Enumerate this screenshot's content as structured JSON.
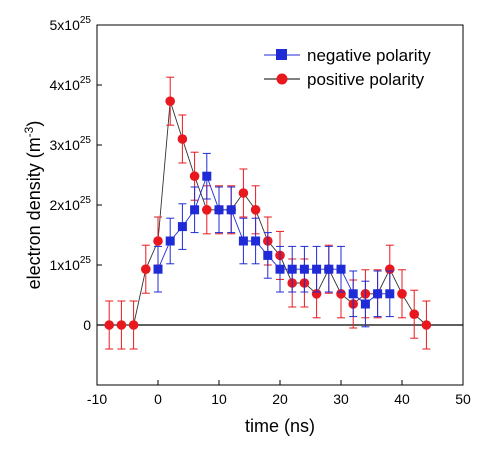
{
  "chart_data": {
    "type": "scatter",
    "xlabel": "time (ns)",
    "ylabel_main": "electron density (m",
    "ylabel_sup": "-3",
    "ylabel_close": ")",
    "xlim": [
      -10,
      50
    ],
    "ylim": [
      -1e+25,
      5e+25
    ],
    "x_ticks": [
      -10,
      0,
      10,
      20,
      30,
      40,
      50
    ],
    "x_tick_labels": [
      "-10",
      "0",
      "10",
      "20",
      "30",
      "40",
      "50"
    ],
    "y_ticks": [
      {
        "value": 0,
        "base": "0",
        "exp": ""
      },
      {
        "value": 1e+25,
        "base": "1x10",
        "exp": "25"
      },
      {
        "value": 2e+25,
        "base": "2x10",
        "exp": "25"
      },
      {
        "value": 3e+25,
        "base": "3x10",
        "exp": "25"
      },
      {
        "value": 4e+25,
        "base": "4x10",
        "exp": "25"
      },
      {
        "value": 5e+25,
        "base": "5x10",
        "exp": "25"
      }
    ],
    "zero_line": true,
    "legend_position": "top-right",
    "series": [
      {
        "name": "negative polarity",
        "color": "#1f2bd6",
        "marker": "square",
        "points": [
          {
            "x": 0,
            "y": 9.3e+24,
            "err": 3.8e+24
          },
          {
            "x": 2,
            "y": 1.4e+25,
            "err": 3.8e+24
          },
          {
            "x": 4,
            "y": 1.64e+25,
            "err": 3.8e+24
          },
          {
            "x": 6,
            "y": 1.92e+25,
            "err": 3.8e+24
          },
          {
            "x": 8,
            "y": 2.48e+25,
            "err": 3.8e+24
          },
          {
            "x": 10,
            "y": 1.92e+25,
            "err": 3.8e+24
          },
          {
            "x": 12,
            "y": 1.92e+25,
            "err": 3.8e+24
          },
          {
            "x": 14,
            "y": 1.4e+25,
            "err": 3.8e+24
          },
          {
            "x": 16,
            "y": 1.4e+25,
            "err": 3.8e+24
          },
          {
            "x": 18,
            "y": 1.16e+25,
            "err": 3.8e+24
          },
          {
            "x": 20,
            "y": 9.3e+24,
            "err": 3.8e+24
          },
          {
            "x": 22,
            "y": 9.3e+24,
            "err": 3.8e+24
          },
          {
            "x": 24,
            "y": 9.3e+24,
            "err": 3.8e+24
          },
          {
            "x": 26,
            "y": 9.3e+24,
            "err": 3.8e+24
          },
          {
            "x": 28,
            "y": 9.3e+24,
            "err": 3.8e+24
          },
          {
            "x": 30,
            "y": 9.3e+24,
            "err": 3.8e+24
          },
          {
            "x": 32,
            "y": 5.2e+24,
            "err": 3.8e+24
          },
          {
            "x": 34,
            "y": 3.5e+24,
            "err": 3.8e+24
          },
          {
            "x": 36,
            "y": 5.2e+24,
            "err": 3.8e+24
          },
          {
            "x": 38,
            "y": 5.2e+24,
            "err": 3.8e+24
          }
        ]
      },
      {
        "name": "positive polarity",
        "color": "#e8181e",
        "marker": "circle",
        "points": [
          {
            "x": -8,
            "y": 0,
            "err": 4e+24
          },
          {
            "x": -6,
            "y": 0,
            "err": 4e+24
          },
          {
            "x": -4,
            "y": 0,
            "err": 4e+24
          },
          {
            "x": -2,
            "y": 9.3e+24,
            "err": 4e+24
          },
          {
            "x": 0,
            "y": 1.4e+25,
            "err": 4e+24
          },
          {
            "x": 2,
            "y": 3.73e+25,
            "err": 4e+24
          },
          {
            "x": 4,
            "y": 3.1e+25,
            "err": 4e+24
          },
          {
            "x": 6,
            "y": 2.48e+25,
            "err": 4e+24
          },
          {
            "x": 8,
            "y": 1.92e+25,
            "err": 4e+24
          },
          {
            "x": 10,
            "y": 1.92e+25,
            "err": 4e+24
          },
          {
            "x": 12,
            "y": 1.92e+25,
            "err": 4e+24
          },
          {
            "x": 14,
            "y": 2.2e+25,
            "err": 4e+24
          },
          {
            "x": 16,
            "y": 1.92e+25,
            "err": 4e+24
          },
          {
            "x": 18,
            "y": 1.4e+25,
            "err": 4e+24
          },
          {
            "x": 20,
            "y": 1.16e+25,
            "err": 4e+24
          },
          {
            "x": 22,
            "y": 7e+24,
            "err": 4e+24
          },
          {
            "x": 24,
            "y": 7e+24,
            "err": 4e+24
          },
          {
            "x": 26,
            "y": 5.2e+24,
            "err": 4e+24
          },
          {
            "x": 28,
            "y": 9.3e+24,
            "err": 4e+24
          },
          {
            "x": 30,
            "y": 5.2e+24,
            "err": 4e+24
          },
          {
            "x": 32,
            "y": 3.5e+24,
            "err": 4e+24
          },
          {
            "x": 34,
            "y": 5.2e+24,
            "err": 4e+24
          },
          {
            "x": 36,
            "y": 5.2e+24,
            "err": 4e+24
          },
          {
            "x": 38,
            "y": 9.3e+24,
            "err": 4e+24
          },
          {
            "x": 40,
            "y": 5.2e+24,
            "err": 4e+24
          },
          {
            "x": 42,
            "y": 1.8e+24,
            "err": 4e+24
          },
          {
            "x": 44,
            "y": 0,
            "err": 4e+24
          }
        ]
      }
    ]
  }
}
